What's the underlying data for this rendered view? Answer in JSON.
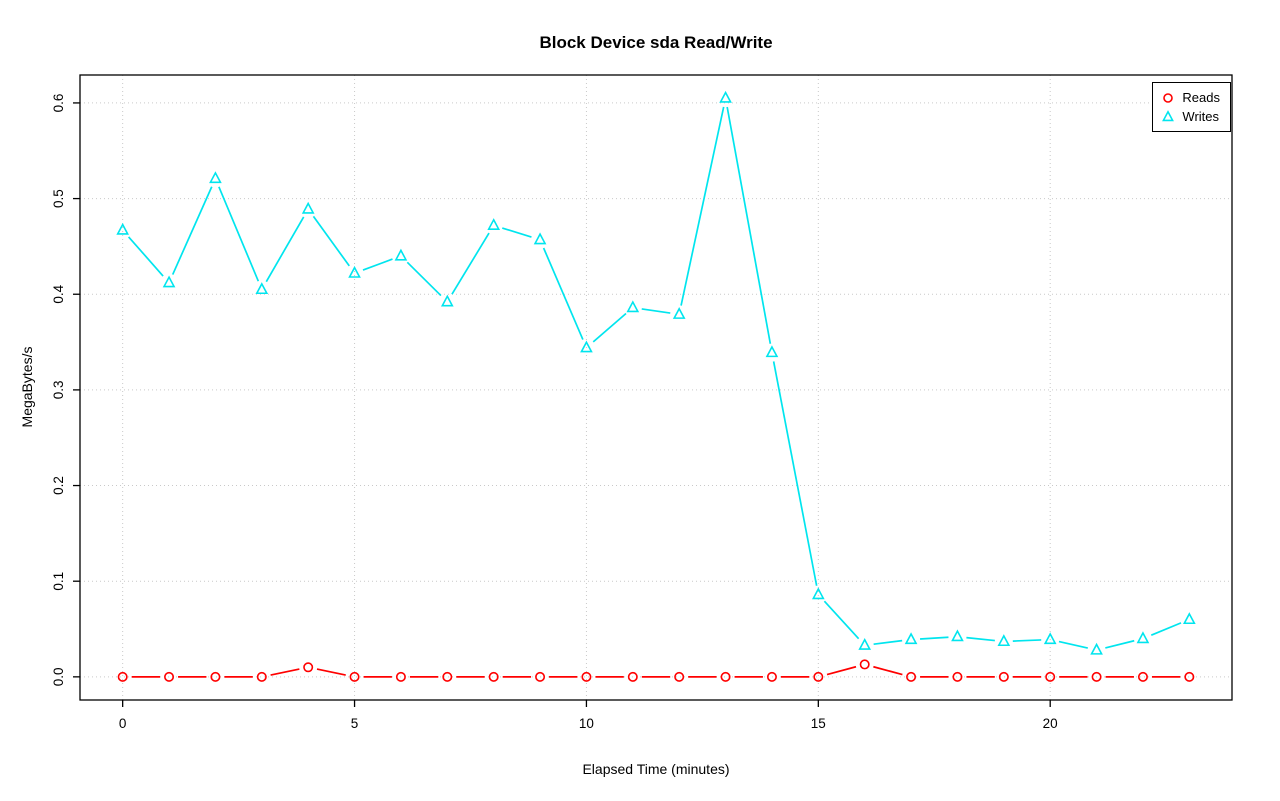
{
  "colors": {
    "reads": "#FF0000",
    "writes": "#00E5EE",
    "grid": "#C9C9C9",
    "axis": "#000000",
    "background": "#FFFFFF"
  },
  "chart_data": {
    "type": "line",
    "title": "Block Device sda Read/Write",
    "xlabel": "Elapsed Time (minutes)",
    "ylabel": "MegaBytes/s",
    "x": [
      0,
      1,
      2,
      3,
      4,
      5,
      6,
      7,
      8,
      9,
      10,
      11,
      12,
      13,
      14,
      15,
      16,
      17,
      18,
      19,
      20,
      21,
      22,
      23
    ],
    "series": [
      {
        "name": "Reads",
        "color": "#FF0000",
        "marker": "circle",
        "values": [
          0.0,
          0.0,
          0.0,
          0.0,
          0.01,
          0.0,
          0.0,
          0.0,
          0.0,
          0.0,
          0.0,
          0.0,
          0.0,
          0.0,
          0.0,
          0.0,
          0.013,
          0.0,
          0.0,
          0.0,
          0.0,
          0.0,
          0.0,
          0.0
        ]
      },
      {
        "name": "Writes",
        "color": "#00E5EE",
        "marker": "triangle",
        "values": [
          0.467,
          0.412,
          0.521,
          0.405,
          0.489,
          0.422,
          0.44,
          0.392,
          0.472,
          0.457,
          0.344,
          0.386,
          0.379,
          0.605,
          0.339,
          0.086,
          0.033,
          0.039,
          0.042,
          0.037,
          0.039,
          0.028,
          0.04,
          0.06
        ]
      }
    ],
    "xlim": [
      0,
      23
    ],
    "ylim": [
      0,
      0.605
    ],
    "xticks": [
      0,
      5,
      10,
      15,
      20
    ],
    "xtick_labels": [
      "0",
      "5",
      "10",
      "15",
      "20"
    ],
    "yticks": [
      0,
      0.1,
      0.2,
      0.3,
      0.4,
      0.5,
      0.6
    ],
    "ytick_labels": [
      "0.0",
      "0.1",
      "0.2",
      "0.3",
      "0.4",
      "0.5",
      "0.6"
    ],
    "grid": true,
    "legend_position": "top-right"
  }
}
